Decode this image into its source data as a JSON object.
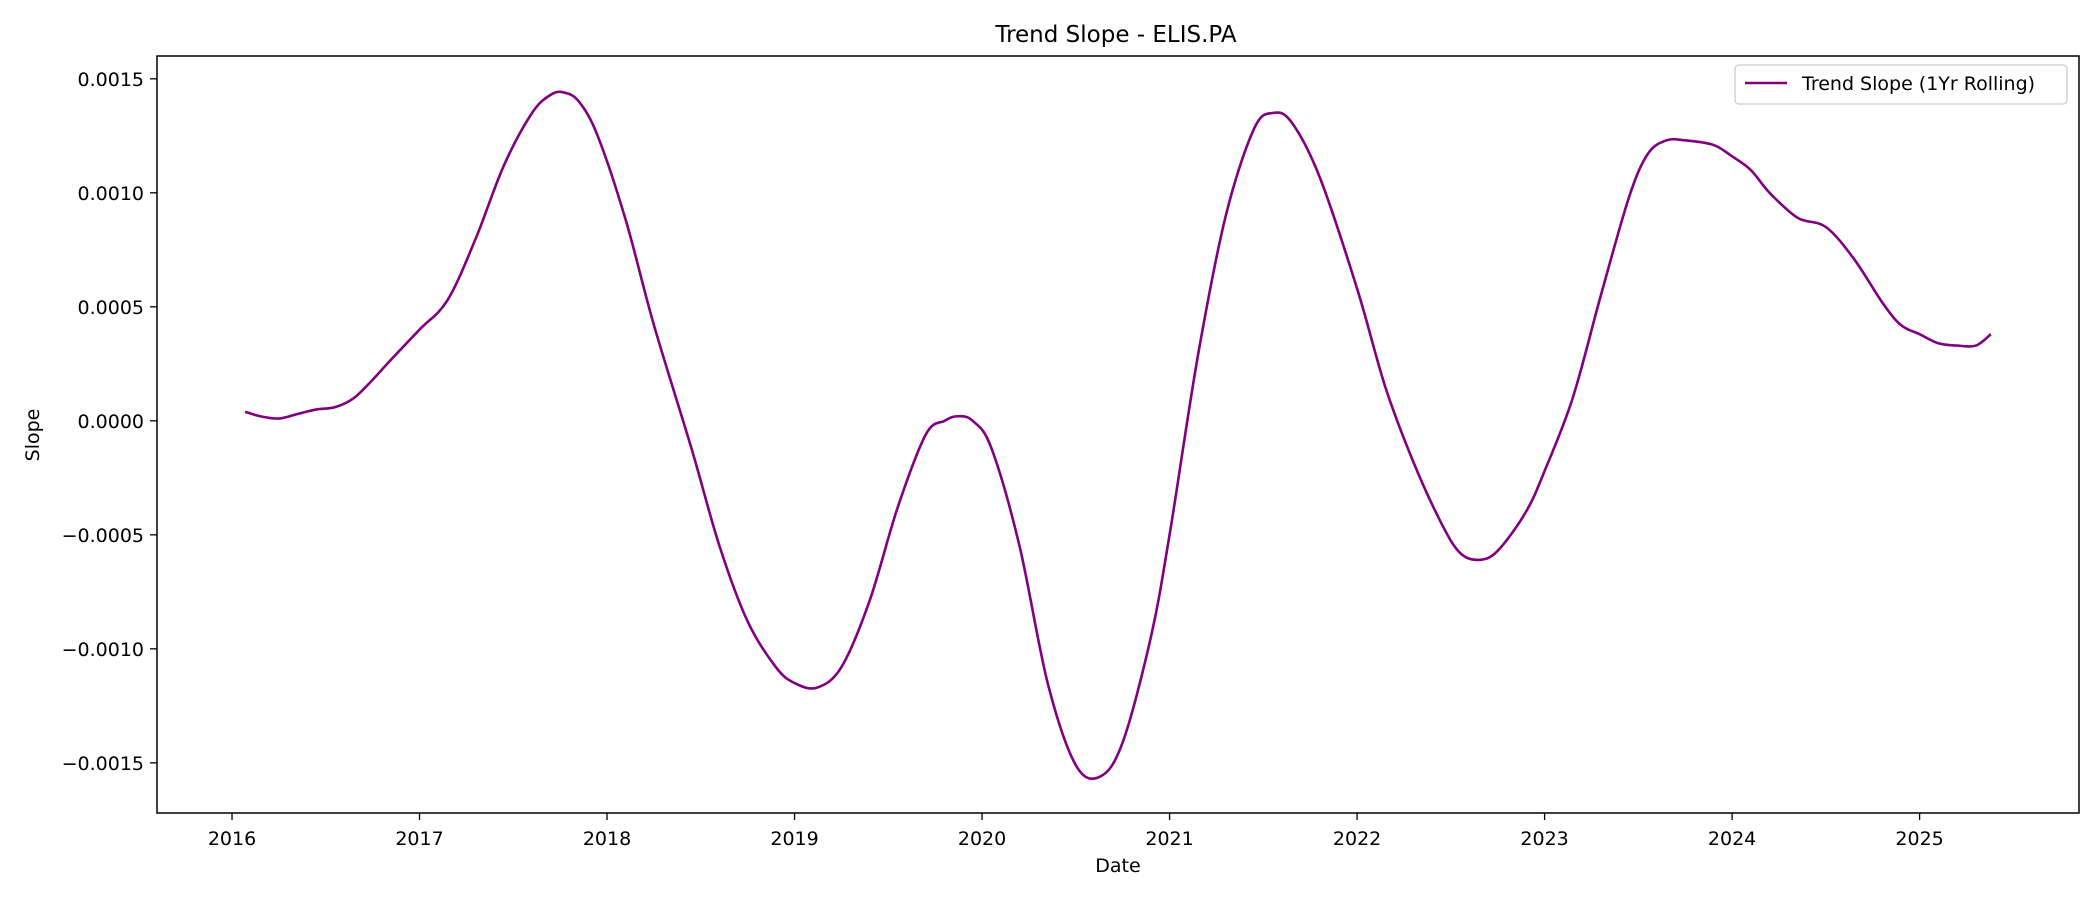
{
  "chart_data": {
    "type": "line",
    "title": "Trend Slope - ELIS.PA",
    "xlabel": "Date",
    "ylabel": "Slope",
    "xlim": [
      2015.6,
      2025.85
    ],
    "ylim": [
      -0.00172,
      0.0016
    ],
    "x_ticks": [
      2016,
      2017,
      2018,
      2019,
      2020,
      2021,
      2022,
      2023,
      2024,
      2025
    ],
    "x_tick_labels": [
      "2016",
      "2017",
      "2018",
      "2019",
      "2020",
      "2021",
      "2022",
      "2023",
      "2024",
      "2025"
    ],
    "y_ticks": [
      -0.0015,
      -0.001,
      -0.0005,
      0.0,
      0.0005,
      0.001,
      0.0015
    ],
    "y_tick_labels": [
      "−0.0015",
      "−0.0010",
      "−0.0005",
      "0.0000",
      "0.0005",
      "0.0010",
      "0.0015"
    ],
    "grid": false,
    "legend_position": "top-right",
    "series": [
      {
        "name": "Trend Slope (1Yr Rolling)",
        "color": "#800080",
        "x": [
          2016.07,
          2016.15,
          2016.25,
          2016.35,
          2016.45,
          2016.55,
          2016.65,
          2016.75,
          2016.85,
          2017.0,
          2017.15,
          2017.3,
          2017.45,
          2017.6,
          2017.7,
          2017.77,
          2017.85,
          2017.95,
          2018.1,
          2018.25,
          2018.45,
          2018.6,
          2018.75,
          2018.9,
          2019.0,
          2019.12,
          2019.25,
          2019.4,
          2019.55,
          2019.7,
          2019.8,
          2019.87,
          2019.95,
          2020.05,
          2020.2,
          2020.35,
          2020.5,
          2020.63,
          2020.75,
          2020.9,
          2021.0,
          2021.15,
          2021.3,
          2021.45,
          2021.55,
          2021.65,
          2021.8,
          2022.0,
          2022.15,
          2022.3,
          2022.45,
          2022.55,
          2022.65,
          2022.75,
          2022.9,
          2023.0,
          2023.15,
          2023.3,
          2023.45,
          2023.55,
          2023.65,
          2023.75,
          2023.9,
          2024.0,
          2024.1,
          2024.2,
          2024.35,
          2024.5,
          2024.65,
          2024.8,
          2024.9,
          2025.0,
          2025.1,
          2025.2,
          2025.3,
          2025.38
        ],
        "y": [
          4e-05,
          2e-05,
          1e-05,
          3e-05,
          5e-05,
          6e-05,
          0.0001,
          0.00018,
          0.00027,
          0.0004,
          0.00053,
          0.0008,
          0.00112,
          0.00135,
          0.00143,
          0.00144,
          0.0014,
          0.00125,
          0.00088,
          0.00042,
          -0.00012,
          -0.00055,
          -0.00088,
          -0.00108,
          -0.00115,
          -0.00117,
          -0.00108,
          -0.00079,
          -0.00038,
          -6e-05,
          0.0,
          2e-05,
          0.0,
          -0.00012,
          -0.00055,
          -0.00115,
          -0.00151,
          -0.00156,
          -0.00141,
          -0.00095,
          -0.0005,
          0.00028,
          0.0009,
          0.00128,
          0.00135,
          0.00131,
          0.00107,
          0.00058,
          0.00015,
          -0.00018,
          -0.00045,
          -0.00058,
          -0.00061,
          -0.00057,
          -0.0004,
          -0.00022,
          0.0001,
          0.00055,
          0.00098,
          0.00117,
          0.00123,
          0.00123,
          0.00121,
          0.00116,
          0.0011,
          0.001,
          0.00089,
          0.00085,
          0.00071,
          0.00052,
          0.00042,
          0.00038,
          0.00034,
          0.00033,
          0.00033,
          0.00038
        ]
      }
    ]
  }
}
